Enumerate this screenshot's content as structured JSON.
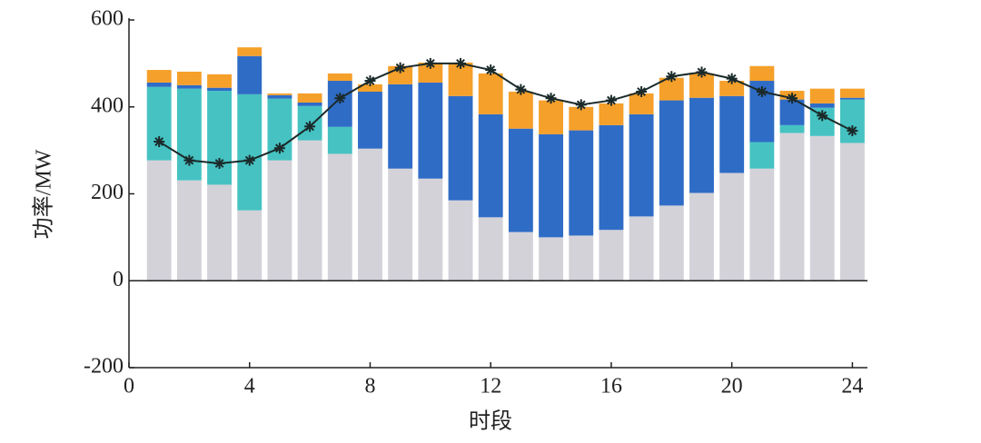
{
  "chart_data": {
    "type": "bar",
    "x_label": "时段",
    "y_label": "功率/MW",
    "x": [
      1,
      2,
      3,
      4,
      5,
      6,
      7,
      8,
      9,
      10,
      11,
      12,
      13,
      14,
      15,
      16,
      17,
      18,
      19,
      20,
      21,
      22,
      23,
      24
    ],
    "xlim": [
      0,
      24.5
    ],
    "xticks": [
      0,
      4,
      8,
      12,
      16,
      20,
      24
    ],
    "ylim": [
      -200,
      600
    ],
    "yticks": [
      -200,
      0,
      200,
      400,
      600
    ],
    "series": [
      {
        "type": "bar",
        "color": "#d3d2d9",
        "values": [
          277,
          231,
          221,
          162,
          277,
          323,
          292,
          304,
          258,
          235,
          185,
          146,
          112,
          100,
          104,
          117,
          148,
          173,
          202,
          248,
          258,
          340,
          333,
          317
        ]
      },
      {
        "type": "bar",
        "color": "#46c2c2",
        "values": [
          169,
          211,
          216,
          267,
          142,
          79,
          62,
          0,
          0,
          0,
          0,
          0,
          0,
          0,
          0,
          0,
          0,
          0,
          0,
          0,
          61,
          18,
          65,
          100
        ]
      },
      {
        "type": "bar",
        "color": "#2f6cc6",
        "values": [
          10,
          8,
          7,
          88,
          8,
          8,
          106,
          131,
          194,
          221,
          240,
          237,
          238,
          237,
          242,
          241,
          235,
          242,
          219,
          177,
          141,
          59,
          10,
          4
        ]
      },
      {
        "type": "bar",
        "color": "#f5a02a",
        "values": [
          29,
          31,
          31,
          20,
          4,
          21,
          17,
          17,
          42,
          46,
          77,
          94,
          85,
          78,
          54,
          50,
          48,
          52,
          56,
          35,
          34,
          20,
          34,
          21
        ]
      },
      {
        "type": "line",
        "color": "#1b2a2a",
        "values": [
          320,
          277,
          270,
          277,
          305,
          355,
          420,
          460,
          490,
          500,
          500,
          485,
          440,
          420,
          405,
          415,
          435,
          470,
          480,
          465,
          435,
          420,
          380,
          345
        ]
      }
    ]
  }
}
